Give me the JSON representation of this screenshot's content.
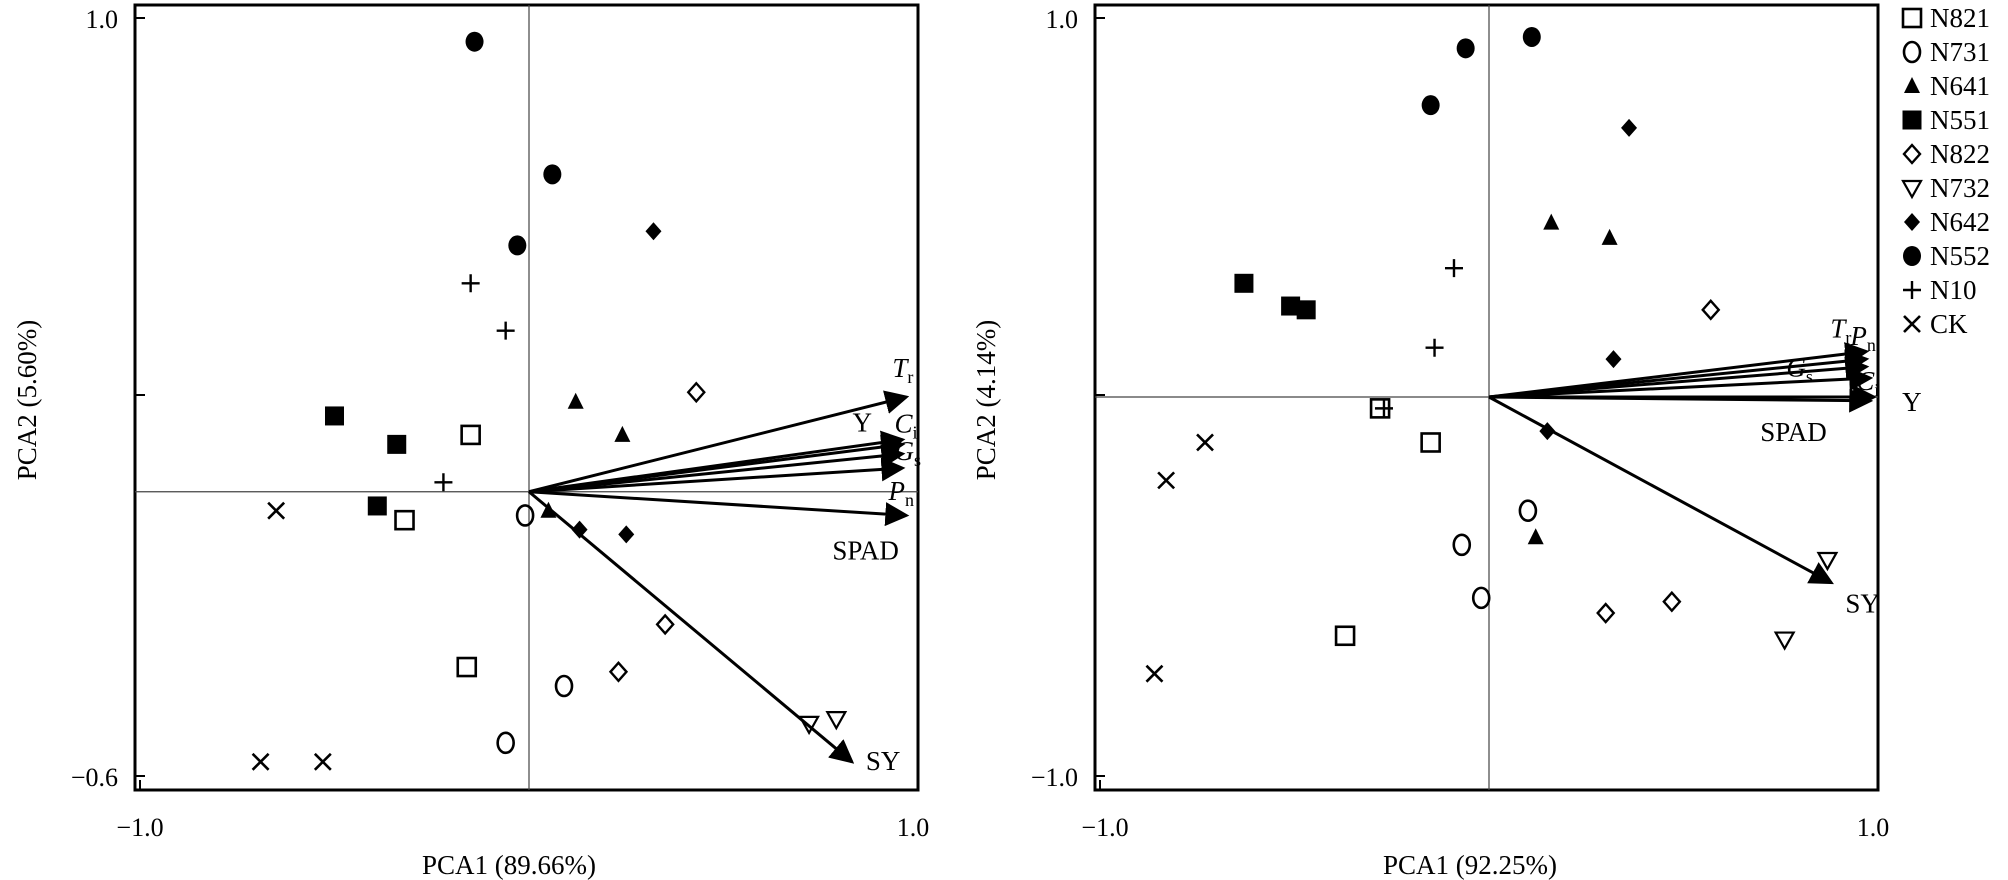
{
  "chart_data": [
    {
      "type": "scatter",
      "subtype": "pca-biplot",
      "xlabel": "PCA1 (89.66%)",
      "ylabel": "PCA2 (5.60%)",
      "xlim": [
        -1.0,
        1.0
      ],
      "ylim": [
        -0.6,
        1.0
      ],
      "x_tick_labels": [
        "−1.0",
        "1.0"
      ],
      "y_tick_labels": [
        "1.0",
        "−0.6"
      ],
      "grid": false,
      "vectors": [
        {
          "label": "Tr",
          "base": "T",
          "sub": "r",
          "italic": true,
          "x": 0.97,
          "y": 0.2
        },
        {
          "label": "Y",
          "base": "Y",
          "sub": "",
          "italic": false,
          "x": 0.96,
          "y": 0.11
        },
        {
          "label": "Ci",
          "base": "C",
          "sub": "i",
          "italic": true,
          "x": 0.96,
          "y": 0.1
        },
        {
          "label": "Gs",
          "base": "G",
          "sub": "s",
          "italic": true,
          "x": 0.96,
          "y": 0.08
        },
        {
          "label": "Pn",
          "base": "P",
          "sub": "n",
          "italic": true,
          "x": 0.96,
          "y": 0.05
        },
        {
          "label": "SPAD",
          "base": "SPAD",
          "sub": "",
          "italic": false,
          "x": 0.97,
          "y": -0.05
        },
        {
          "label": "SY",
          "base": "SY",
          "sub": "",
          "italic": false,
          "x": 0.83,
          "y": -0.57
        }
      ],
      "series": [
        {
          "name": "N821",
          "x": [
            -0.15,
            -0.32,
            -0.16
          ],
          "y": [
            0.12,
            -0.06,
            -0.37
          ]
        },
        {
          "name": "N731",
          "x": [
            -0.01,
            0.09,
            -0.06
          ],
          "y": [
            -0.05,
            -0.41,
            -0.53
          ]
        },
        {
          "name": "N641",
          "x": [
            0.12,
            0.24,
            0.05
          ],
          "y": [
            0.19,
            0.12,
            -0.04
          ]
        },
        {
          "name": "N551",
          "x": [
            -0.5,
            -0.34,
            -0.39
          ],
          "y": [
            0.16,
            0.1,
            -0.03
          ]
        },
        {
          "name": "N822",
          "x": [
            0.43,
            0.35,
            0.23
          ],
          "y": [
            0.21,
            -0.28,
            -0.38
          ]
        },
        {
          "name": "N732",
          "x": [
            0.79,
            0.72
          ],
          "y": [
            -0.48,
            -0.49
          ]
        },
        {
          "name": "N642",
          "x": [
            0.32,
            0.13,
            0.25
          ],
          "y": [
            0.55,
            -0.08,
            -0.09
          ]
        },
        {
          "name": "N552",
          "x": [
            -0.14,
            0.06,
            -0.03
          ],
          "y": [
            0.95,
            0.67,
            0.52
          ]
        },
        {
          "name": "N10",
          "x": [
            -0.15,
            -0.06,
            -0.22
          ],
          "y": [
            0.44,
            0.34,
            0.02
          ]
        },
        {
          "name": "CK",
          "x": [
            -0.65,
            -0.69,
            -0.53
          ],
          "y": [
            -0.04,
            -0.57,
            -0.57
          ]
        }
      ]
    },
    {
      "type": "scatter",
      "subtype": "pca-biplot",
      "xlabel": "PCA1 (92.25%)",
      "ylabel": "PCA2 (4.14%)",
      "xlim": [
        -1.0,
        1.0
      ],
      "ylim": [
        -1.0,
        1.0
      ],
      "x_tick_labels": [
        "−1.0",
        "1.0"
      ],
      "y_tick_labels": [
        "1.0",
        "−1.0"
      ],
      "grid": false,
      "vectors": [
        {
          "label": "Tr",
          "base": "T",
          "sub": "r",
          "italic": true,
          "x": 0.97,
          "y": 0.12
        },
        {
          "label": "Pn",
          "base": "P",
          "sub": "n",
          "italic": true,
          "x": 0.97,
          "y": 0.1
        },
        {
          "label": "Gs",
          "base": "G",
          "sub": "s",
          "italic": true,
          "x": 0.97,
          "y": 0.08
        },
        {
          "label": "Ci",
          "base": "C",
          "sub": "i",
          "italic": true,
          "x": 0.98,
          "y": 0.05
        },
        {
          "label": "Y",
          "base": "Y",
          "sub": "",
          "italic": false,
          "x": 0.99,
          "y": 0.0
        },
        {
          "label": "SPAD",
          "base": "SPAD",
          "sub": "",
          "italic": false,
          "x": 0.98,
          "y": -0.01
        },
        {
          "label": "SY",
          "base": "SY",
          "sub": "",
          "italic": false,
          "x": 0.88,
          "y": -0.49
        }
      ],
      "series": [
        {
          "name": "N821",
          "x": [
            -0.28,
            -0.15,
            -0.37
          ],
          "y": [
            -0.03,
            -0.12,
            -0.63
          ]
        },
        {
          "name": "N731",
          "x": [
            0.1,
            -0.07,
            -0.02
          ],
          "y": [
            -0.3,
            -0.39,
            -0.53
          ]
        },
        {
          "name": "N641",
          "x": [
            0.16,
            0.31,
            0.12
          ],
          "y": [
            0.46,
            0.42,
            -0.37
          ]
        },
        {
          "name": "N551",
          "x": [
            -0.63,
            -0.51,
            -0.47
          ],
          "y": [
            0.3,
            0.24,
            0.23
          ]
        },
        {
          "name": "N822",
          "x": [
            0.57,
            0.47,
            0.3
          ],
          "y": [
            0.23,
            -0.54,
            -0.57
          ]
        },
        {
          "name": "N732",
          "x": [
            0.87,
            0.76
          ],
          "y": [
            -0.43,
            -0.64
          ]
        },
        {
          "name": "N642",
          "x": [
            0.36,
            0.32,
            0.15
          ],
          "y": [
            0.71,
            0.1,
            -0.09
          ]
        },
        {
          "name": "N552",
          "x": [
            0.11,
            -0.06,
            -0.15
          ],
          "y": [
            0.95,
            0.92,
            0.77
          ]
        },
        {
          "name": "N10",
          "x": [
            -0.09,
            -0.14,
            -0.27
          ],
          "y": [
            0.34,
            0.13,
            -0.03
          ]
        },
        {
          "name": "CK",
          "x": [
            -0.73,
            -0.83,
            -0.86
          ],
          "y": [
            -0.12,
            -0.22,
            -0.73
          ]
        }
      ]
    }
  ],
  "legend": {
    "position": "right",
    "items": [
      {
        "name": "N821",
        "marker": "square-open"
      },
      {
        "name": "N731",
        "marker": "circle-open"
      },
      {
        "name": "N641",
        "marker": "triangle-filled"
      },
      {
        "name": "N551",
        "marker": "square-filled"
      },
      {
        "name": "N822",
        "marker": "diamond-open"
      },
      {
        "name": "N732",
        "marker": "triangle-down-open"
      },
      {
        "name": "N642",
        "marker": "diamond-filled"
      },
      {
        "name": "N552",
        "marker": "circle-filled"
      },
      {
        "name": "N10",
        "marker": "plus"
      },
      {
        "name": "CK",
        "marker": "cross"
      }
    ]
  }
}
